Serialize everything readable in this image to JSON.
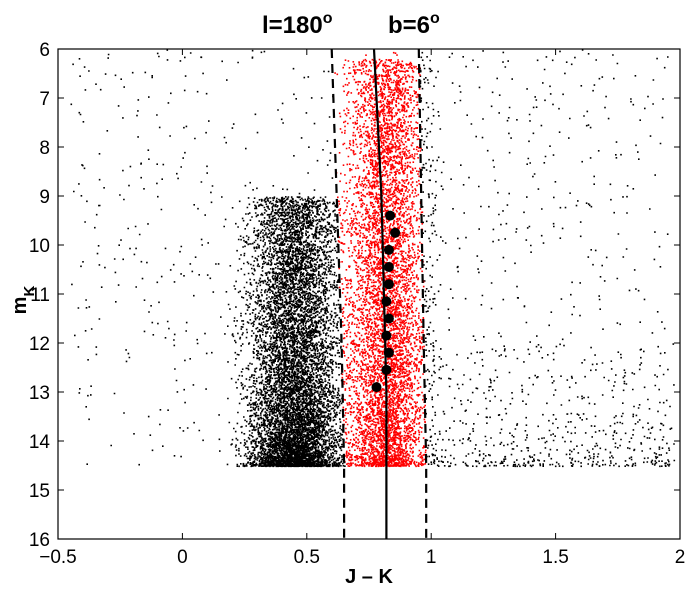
{
  "chart_data": {
    "type": "scatter",
    "title": {
      "l_text": "l=180",
      "l_sup": "o",
      "b_text": "b=6",
      "b_sup": "o"
    },
    "xlabel": "J – K",
    "ylabel": {
      "main": "m",
      "sub": "K"
    },
    "xlim": [
      -0.5,
      2
    ],
    "ylim": [
      6,
      16
    ],
    "y_inverted": true,
    "grid": false,
    "legend": "none",
    "xticks": [
      -0.5,
      0,
      0.5,
      1,
      1.5,
      2
    ],
    "xtick_labels": [
      "−0.5",
      "0",
      "0.5",
      "1",
      "1.5",
      "2"
    ],
    "yticks": [
      6,
      7,
      8,
      9,
      10,
      11,
      12,
      13,
      14,
      15,
      16
    ],
    "ytick_labels": [
      "6",
      "7",
      "8",
      "9",
      "10",
      "11",
      "12",
      "13",
      "14",
      "15",
      "16"
    ],
    "series": [
      {
        "kind": "scatter-cloud-black",
        "color": "#000000",
        "description_points": "dense stellar cloud",
        "magnitude_limit": 14.5,
        "main_sequence_core_jk": 0.45,
        "giant_branch_core_jk": 0.82
      },
      {
        "kind": "scatter-cloud-red",
        "color": "#ff0000",
        "jk_range": [
          0.65,
          0.98
        ],
        "magnitude_limit": 14.5
      },
      {
        "kind": "ridge-line",
        "color": "#000000",
        "style": "solid",
        "x": [
          0.77,
          0.78,
          0.79,
          0.8,
          0.805,
          0.81,
          0.815,
          0.82,
          0.82,
          0.82,
          0.82
        ],
        "y": [
          6,
          7,
          8,
          9,
          10,
          11,
          12,
          13,
          14,
          15,
          16
        ]
      },
      {
        "kind": "boundary-left",
        "color": "#000000",
        "style": "dashed",
        "x": [
          0.6,
          0.62,
          0.64,
          0.65,
          0.65
        ],
        "y": [
          6,
          9,
          12,
          14.5,
          16
        ]
      },
      {
        "kind": "boundary-right",
        "color": "#000000",
        "style": "dashed",
        "x": [
          0.95,
          0.96,
          0.97,
          0.98,
          0.98
        ],
        "y": [
          6,
          9,
          12,
          14.5,
          16
        ]
      },
      {
        "kind": "ridge-points",
        "color": "#000000",
        "x": [
          0.835,
          0.855,
          0.83,
          0.83,
          0.83,
          0.82,
          0.83,
          0.82,
          0.83,
          0.82,
          0.78
        ],
        "y": [
          9.4,
          9.75,
          10.1,
          10.45,
          10.8,
          11.15,
          11.5,
          11.85,
          12.2,
          12.55,
          12.9
        ]
      }
    ]
  }
}
